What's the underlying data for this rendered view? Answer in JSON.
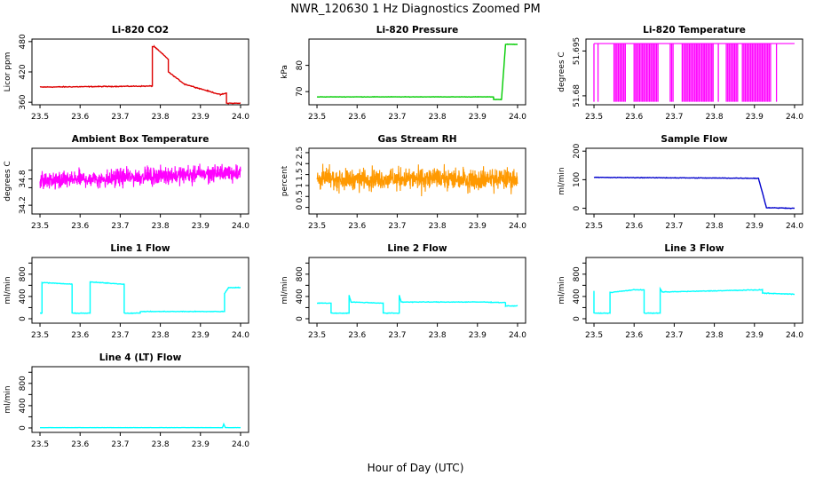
{
  "figure": {
    "title": "NWR_120630  1 Hz Diagnostics Zoomed PM",
    "xlabel": "Hour of Day (UTC)"
  },
  "chart_data": [
    {
      "type": "line",
      "title": "Li-820 CO2",
      "ylabel": "Licor ppm",
      "color": "#dd0000",
      "xlim": [
        23.48,
        24.02
      ],
      "xticks": [
        23.5,
        23.6,
        23.7,
        23.8,
        23.9,
        24.0
      ],
      "ylim": [
        355,
        485
      ],
      "yticks": [
        360,
        420,
        480
      ],
      "noise": 1.2,
      "x": [
        23.5,
        23.78,
        23.78,
        23.785,
        23.785,
        23.82,
        23.82,
        23.86,
        23.86,
        23.95,
        23.95,
        23.965,
        23.965,
        24.0
      ],
      "y": [
        390,
        392,
        470,
        470,
        470,
        445,
        420,
        396,
        396,
        375,
        375,
        378,
        358,
        358
      ]
    },
    {
      "type": "line",
      "title": "Li-820 Pressure",
      "ylabel": "kPa",
      "color": "#00cc00",
      "xlim": [
        23.48,
        24.02
      ],
      "xticks": [
        23.5,
        23.6,
        23.7,
        23.8,
        23.9,
        24.0
      ],
      "ylim": [
        65,
        90
      ],
      "yticks": [
        70,
        80
      ],
      "noise": 0.1,
      "x": [
        23.5,
        23.94,
        23.94,
        23.96,
        23.97,
        24.0
      ],
      "y": [
        68,
        68,
        67,
        67,
        88,
        88
      ]
    },
    {
      "type": "toggle",
      "title": "Li-820 Temperature",
      "ylabel": "degrees C",
      "color": "#ff00ff",
      "xlim": [
        23.48,
        24.02
      ],
      "xticks": [
        23.5,
        23.6,
        23.7,
        23.8,
        23.9,
        24.0
      ],
      "ylim": [
        51.677,
        51.699
      ],
      "yticks": [
        51.68,
        51.695
      ],
      "high": 51.6975,
      "low": 51.678,
      "segments": [
        [
          23.5,
          23.502
        ],
        [
          23.51,
          23.512
        ],
        [
          23.55,
          23.58
        ],
        [
          23.6,
          23.66
        ],
        [
          23.69,
          23.7
        ],
        [
          23.72,
          23.8
        ],
        [
          23.81,
          23.812
        ],
        [
          23.83,
          23.86
        ],
        [
          23.87,
          23.94
        ],
        [
          23.955,
          23.957
        ]
      ]
    },
    {
      "type": "noise",
      "title": "Ambient Box Temperature",
      "ylabel": "degrees C",
      "color": "#ff00ff",
      "xlim": [
        23.48,
        24.02
      ],
      "xticks": [
        23.5,
        23.6,
        23.7,
        23.8,
        23.9,
        24.0
      ],
      "ylim": [
        34.0,
        35.5
      ],
      "yticks": [
        34.2,
        34.6,
        34.8,
        35.0
      ],
      "ytick_labels": [
        "34.2",
        "",
        "34.8",
        ""
      ],
      "x": [
        23.5,
        24.0
      ],
      "center": [
        34.75,
        34.95
      ],
      "amp": 0.28
    },
    {
      "type": "noise",
      "title": "Gas Stream RH",
      "ylabel": "percent",
      "color": "#ff9900",
      "xlim": [
        23.48,
        24.02
      ],
      "xticks": [
        23.5,
        23.6,
        23.7,
        23.8,
        23.9,
        24.0
      ],
      "ylim": [
        -0.3,
        2.7
      ],
      "yticks": [
        0.0,
        0.5,
        1.0,
        1.5,
        2.0,
        2.5
      ],
      "x": [
        23.5,
        24.0
      ],
      "center": [
        1.3,
        1.3
      ],
      "amp": 0.7
    },
    {
      "type": "line",
      "title": "Sample Flow",
      "ylabel": "ml/min",
      "color": "#0000cc",
      "xlim": [
        23.48,
        24.02
      ],
      "xticks": [
        23.5,
        23.6,
        23.7,
        23.8,
        23.9,
        24.0
      ],
      "ylim": [
        -20,
        210
      ],
      "yticks": [
        0,
        100,
        200
      ],
      "noise": 1.5,
      "x": [
        23.5,
        23.91,
        23.91,
        23.93,
        24.0
      ],
      "y": [
        108,
        105,
        105,
        2,
        0
      ]
    },
    {
      "type": "line",
      "title": "Line 1 Flow",
      "ylabel": "ml/min",
      "color": "#00ffff",
      "xlim": [
        23.48,
        24.02
      ],
      "xticks": [
        23.5,
        23.6,
        23.7,
        23.8,
        23.9,
        24.0
      ],
      "ylim": [
        -80,
        1100
      ],
      "yticks": [
        0,
        200,
        400,
        600,
        800,
        1000
      ],
      "ytick_labels": [
        "0",
        "",
        "400",
        "",
        "800",
        ""
      ],
      "noise": 8,
      "x": [
        23.5,
        23.505,
        23.505,
        23.58,
        23.58,
        23.625,
        23.625,
        23.71,
        23.71,
        23.75,
        23.75,
        23.96,
        23.96,
        23.97,
        24.0
      ],
      "y": [
        100,
        100,
        650,
        620,
        100,
        100,
        660,
        620,
        100,
        100,
        130,
        130,
        450,
        560,
        560
      ]
    },
    {
      "type": "line",
      "title": "Line 2 Flow",
      "ylabel": "ml/min",
      "color": "#00ffff",
      "xlim": [
        23.48,
        24.02
      ],
      "xticks": [
        23.5,
        23.6,
        23.7,
        23.8,
        23.9,
        24.0
      ],
      "ylim": [
        -80,
        1100
      ],
      "yticks": [
        0,
        200,
        400,
        600,
        800,
        1000
      ],
      "ytick_labels": [
        "0",
        "",
        "400",
        "",
        "800",
        ""
      ],
      "noise": 8,
      "x": [
        23.5,
        23.505,
        23.535,
        23.535,
        23.58,
        23.58,
        23.585,
        23.665,
        23.665,
        23.705,
        23.705,
        23.71,
        23.91,
        23.97,
        23.97,
        24.0
      ],
      "y": [
        280,
        280,
        280,
        100,
        100,
        420,
        300,
        280,
        100,
        100,
        420,
        300,
        300,
        290,
        230,
        230
      ]
    },
    {
      "type": "line",
      "title": "Line 3 Flow",
      "ylabel": "ml/min",
      "color": "#00ffff",
      "xlim": [
        23.48,
        24.02
      ],
      "xticks": [
        23.5,
        23.6,
        23.7,
        23.8,
        23.9,
        24.0
      ],
      "ylim": [
        -80,
        1100
      ],
      "yticks": [
        0,
        200,
        400,
        600,
        800,
        1000
      ],
      "ytick_labels": [
        "0",
        "",
        "400",
        "",
        "800",
        ""
      ],
      "noise": 8,
      "x": [
        23.5,
        23.5,
        23.505,
        23.54,
        23.54,
        23.6,
        23.625,
        23.625,
        23.665,
        23.665,
        23.67,
        23.92,
        23.92,
        24.0
      ],
      "y": [
        500,
        100,
        100,
        100,
        470,
        520,
        520,
        100,
        100,
        540,
        480,
        520,
        460,
        440
      ]
    },
    {
      "type": "line",
      "title": "Line 4 (LT) Flow",
      "ylabel": "ml/min",
      "color": "#00ffff",
      "xlim": [
        23.48,
        24.02
      ],
      "xticks": [
        23.5,
        23.6,
        23.7,
        23.8,
        23.9,
        24.0
      ],
      "ylim": [
        -80,
        1100
      ],
      "yticks": [
        0,
        200,
        400,
        600,
        800,
        1000
      ],
      "ytick_labels": [
        "0",
        "",
        "400",
        "",
        "800",
        ""
      ],
      "noise": 2,
      "x": [
        23.5,
        23.955,
        23.958,
        23.962,
        24.0
      ],
      "y": [
        5,
        5,
        70,
        5,
        5
      ]
    }
  ]
}
